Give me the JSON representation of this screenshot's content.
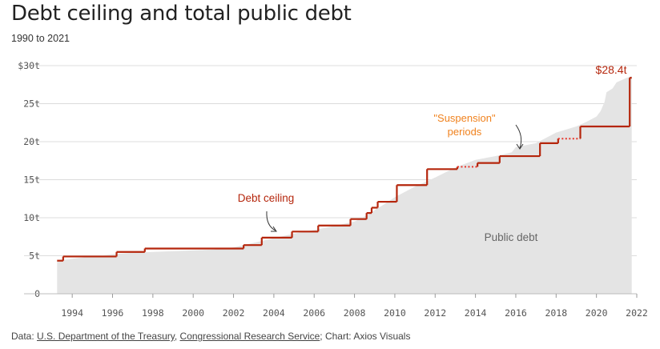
{
  "title": "Debt ceiling and total public debt",
  "subtitle": "1990 to 2021",
  "source": {
    "prefix": "Data: ",
    "link1": "U.S. Department of the Treasury",
    "sep": ", ",
    "link2": "Congressional Research Service",
    "suffix": "; Chart: Axios Visuals"
  },
  "colors": {
    "ceiling": "#b5260c",
    "suspension": "#e8352a",
    "suspension_label": "#f0821e",
    "debt_area": "#e4e4e4",
    "grid": "#dcdcdc",
    "axis_text": "#555555"
  },
  "chart_data": {
    "type": "area",
    "xlim": [
      1993.0,
      2022.0
    ],
    "ylim": [
      0,
      30
    ],
    "x_ticks": [
      1994,
      1996,
      1998,
      2000,
      2002,
      2004,
      2006,
      2008,
      2010,
      2012,
      2014,
      2016,
      2018,
      2020,
      2022
    ],
    "y_ticks": [
      {
        "value": 0,
        "label": "0"
      },
      {
        "value": 5,
        "label": "5t"
      },
      {
        "value": 10,
        "label": "10t"
      },
      {
        "value": 15,
        "label": "15t"
      },
      {
        "value": 20,
        "label": "20t"
      },
      {
        "value": 25,
        "label": "25t"
      },
      {
        "value": 30,
        "label": "$30t"
      }
    ],
    "series": [
      {
        "name": "Public debt",
        "points": [
          [
            1993.25,
            4.35
          ],
          [
            1994.0,
            4.6
          ],
          [
            1995.0,
            4.9
          ],
          [
            1996.0,
            5.2
          ],
          [
            1997.0,
            5.4
          ],
          [
            1998.0,
            5.5
          ],
          [
            1999.0,
            5.6
          ],
          [
            2000.0,
            5.7
          ],
          [
            2001.0,
            5.8
          ],
          [
            2002.0,
            6.1
          ],
          [
            2003.0,
            6.7
          ],
          [
            2004.0,
            7.3
          ],
          [
            2005.0,
            7.9
          ],
          [
            2006.0,
            8.4
          ],
          [
            2007.0,
            8.9
          ],
          [
            2008.0,
            9.5
          ],
          [
            2008.6,
            10.3
          ],
          [
            2009.0,
            11.0
          ],
          [
            2009.5,
            11.8
          ],
          [
            2010.0,
            12.7
          ],
          [
            2010.5,
            13.4
          ],
          [
            2011.0,
            14.1
          ],
          [
            2011.6,
            14.8
          ],
          [
            2012.0,
            15.3
          ],
          [
            2013.0,
            16.6
          ],
          [
            2014.0,
            17.6
          ],
          [
            2015.0,
            18.1
          ],
          [
            2015.8,
            18.6
          ],
          [
            2016.0,
            19.3
          ],
          [
            2017.0,
            19.8
          ],
          [
            2018.0,
            21.2
          ],
          [
            2019.0,
            22.0
          ],
          [
            2019.5,
            22.6
          ],
          [
            2020.0,
            23.3
          ],
          [
            2020.2,
            24.0
          ],
          [
            2020.4,
            25.2
          ],
          [
            2020.5,
            26.5
          ],
          [
            2020.8,
            27.0
          ],
          [
            2021.0,
            27.8
          ],
          [
            2021.5,
            28.4
          ],
          [
            2021.75,
            28.6
          ]
        ]
      },
      {
        "name": "Debt ceiling",
        "points": [
          [
            1993.25,
            4.35
          ],
          [
            1993.55,
            4.9
          ],
          [
            1996.2,
            5.5
          ],
          [
            1997.6,
            5.95
          ],
          [
            2002.5,
            6.4
          ],
          [
            2003.4,
            7.38
          ],
          [
            2004.9,
            8.18
          ],
          [
            2006.2,
            8.97
          ],
          [
            2007.8,
            9.82
          ],
          [
            2008.6,
            10.62
          ],
          [
            2008.85,
            11.32
          ],
          [
            2009.15,
            12.1
          ],
          [
            2010.1,
            14.29
          ],
          [
            2011.6,
            16.39
          ],
          [
            2013.1,
            16.7
          ],
          [
            2014.1,
            17.2
          ],
          [
            2015.2,
            18.1
          ],
          [
            2017.2,
            19.8
          ],
          [
            2018.1,
            20.4
          ],
          [
            2019.2,
            22.0
          ],
          [
            2021.6,
            22.0
          ],
          [
            2021.65,
            28.4
          ],
          [
            2021.75,
            28.4
          ]
        ],
        "suspension_periods": [
          [
            2013.1,
            2014.1
          ],
          [
            2015.8,
            2017.2
          ],
          [
            2018.1,
            2019.2
          ],
          [
            2019.6,
            2021.6
          ]
        ]
      }
    ],
    "annotations": {
      "ceiling_label": "Debt ceiling",
      "suspension_label_line1": "\"Suspension\"",
      "suspension_label_line2": "periods",
      "debt_label": "Public debt",
      "end_value": "$28.4t"
    }
  }
}
